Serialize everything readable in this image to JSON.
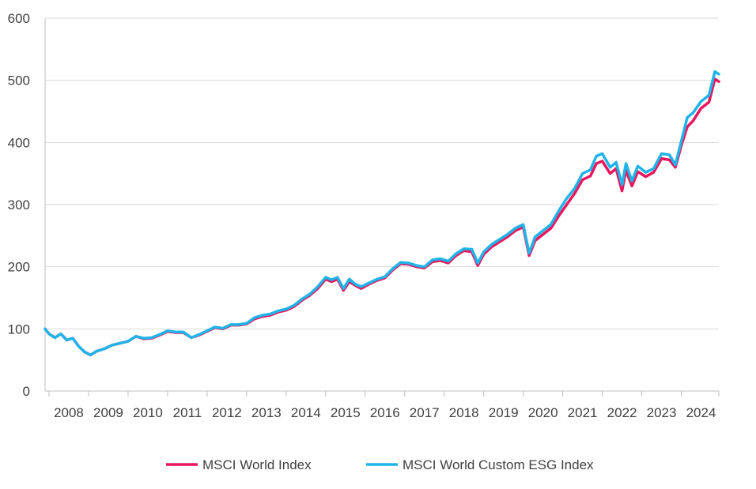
{
  "chart_data": {
    "type": "line",
    "title": "",
    "xlabel": "",
    "ylabel": "",
    "ylim": [
      0,
      600
    ],
    "xlim": [
      2007.9,
      2024.95
    ],
    "yticks": [
      "0",
      "100",
      "200",
      "300",
      "400",
      "500",
      "600"
    ],
    "xticks": [
      "2008",
      "2009",
      "2010",
      "2011",
      "2012",
      "2013",
      "2014",
      "2015",
      "2016",
      "2017",
      "2018",
      "2019",
      "2020",
      "2021",
      "2022",
      "2023",
      "2024"
    ],
    "grid": "horizontal",
    "legend": "bottom-center",
    "series": [
      {
        "name": "MSCI World Index",
        "color": "#E8175D",
        "points": [
          [
            2007.9,
            100
          ],
          [
            2008.0,
            92
          ],
          [
            2008.15,
            86
          ],
          [
            2008.3,
            92
          ],
          [
            2008.45,
            82
          ],
          [
            2008.6,
            85
          ],
          [
            2008.75,
            72
          ],
          [
            2008.9,
            63
          ],
          [
            2009.05,
            58
          ],
          [
            2009.2,
            64
          ],
          [
            2009.4,
            68
          ],
          [
            2009.6,
            74
          ],
          [
            2009.8,
            77
          ],
          [
            2010.0,
            80
          ],
          [
            2010.2,
            88
          ],
          [
            2010.4,
            84
          ],
          [
            2010.6,
            85
          ],
          [
            2010.8,
            90
          ],
          [
            2011.0,
            96
          ],
          [
            2011.2,
            94
          ],
          [
            2011.4,
            94
          ],
          [
            2011.6,
            86
          ],
          [
            2011.8,
            90
          ],
          [
            2012.0,
            96
          ],
          [
            2012.2,
            102
          ],
          [
            2012.4,
            100
          ],
          [
            2012.6,
            106
          ],
          [
            2012.8,
            106
          ],
          [
            2013.0,
            108
          ],
          [
            2013.2,
            116
          ],
          [
            2013.4,
            120
          ],
          [
            2013.6,
            122
          ],
          [
            2013.8,
            127
          ],
          [
            2014.0,
            130
          ],
          [
            2014.2,
            136
          ],
          [
            2014.4,
            146
          ],
          [
            2014.6,
            154
          ],
          [
            2014.8,
            165
          ],
          [
            2015.0,
            180
          ],
          [
            2015.15,
            176
          ],
          [
            2015.3,
            180
          ],
          [
            2015.45,
            162
          ],
          [
            2015.6,
            176
          ],
          [
            2015.75,
            170
          ],
          [
            2015.9,
            165
          ],
          [
            2016.1,
            172
          ],
          [
            2016.3,
            178
          ],
          [
            2016.5,
            182
          ],
          [
            2016.7,
            195
          ],
          [
            2016.9,
            205
          ],
          [
            2017.1,
            204
          ],
          [
            2017.3,
            200
          ],
          [
            2017.5,
            198
          ],
          [
            2017.7,
            208
          ],
          [
            2017.9,
            210
          ],
          [
            2018.1,
            206
          ],
          [
            2018.3,
            218
          ],
          [
            2018.5,
            226
          ],
          [
            2018.7,
            224
          ],
          [
            2018.85,
            202
          ],
          [
            2019.0,
            220
          ],
          [
            2019.2,
            232
          ],
          [
            2019.4,
            240
          ],
          [
            2019.6,
            248
          ],
          [
            2019.8,
            258
          ],
          [
            2020.0,
            264
          ],
          [
            2020.15,
            218
          ],
          [
            2020.3,
            242
          ],
          [
            2020.5,
            252
          ],
          [
            2020.7,
            262
          ],
          [
            2020.9,
            282
          ],
          [
            2021.1,
            300
          ],
          [
            2021.3,
            318
          ],
          [
            2021.5,
            340
          ],
          [
            2021.7,
            346
          ],
          [
            2021.85,
            366
          ],
          [
            2022.0,
            370
          ],
          [
            2022.2,
            350
          ],
          [
            2022.35,
            358
          ],
          [
            2022.5,
            322
          ],
          [
            2022.6,
            355
          ],
          [
            2022.75,
            330
          ],
          [
            2022.9,
            353
          ],
          [
            2023.1,
            345
          ],
          [
            2023.3,
            352
          ],
          [
            2023.5,
            374
          ],
          [
            2023.7,
            372
          ],
          [
            2023.85,
            360
          ],
          [
            2024.0,
            395
          ],
          [
            2024.15,
            425
          ],
          [
            2024.3,
            435
          ],
          [
            2024.5,
            455
          ],
          [
            2024.7,
            465
          ],
          [
            2024.85,
            502
          ],
          [
            2024.95,
            498
          ]
        ]
      },
      {
        "name": "MSCI World Custom ESG Index",
        "color": "#20B4E8",
        "points": [
          [
            2007.9,
            100
          ],
          [
            2008.0,
            92
          ],
          [
            2008.15,
            86
          ],
          [
            2008.3,
            92
          ],
          [
            2008.45,
            82
          ],
          [
            2008.6,
            85
          ],
          [
            2008.75,
            72
          ],
          [
            2008.9,
            63
          ],
          [
            2009.05,
            58
          ],
          [
            2009.2,
            64
          ],
          [
            2009.4,
            68
          ],
          [
            2009.6,
            74
          ],
          [
            2009.8,
            77
          ],
          [
            2010.0,
            80
          ],
          [
            2010.2,
            88
          ],
          [
            2010.4,
            85
          ],
          [
            2010.6,
            86
          ],
          [
            2010.8,
            91
          ],
          [
            2011.0,
            97
          ],
          [
            2011.2,
            95
          ],
          [
            2011.4,
            95
          ],
          [
            2011.6,
            86
          ],
          [
            2011.8,
            91
          ],
          [
            2012.0,
            97
          ],
          [
            2012.2,
            103
          ],
          [
            2012.4,
            101
          ],
          [
            2012.6,
            107
          ],
          [
            2012.8,
            107
          ],
          [
            2013.0,
            109
          ],
          [
            2013.2,
            118
          ],
          [
            2013.4,
            122
          ],
          [
            2013.6,
            124
          ],
          [
            2013.8,
            129
          ],
          [
            2014.0,
            132
          ],
          [
            2014.2,
            138
          ],
          [
            2014.4,
            148
          ],
          [
            2014.6,
            156
          ],
          [
            2014.8,
            168
          ],
          [
            2015.0,
            183
          ],
          [
            2015.15,
            179
          ],
          [
            2015.3,
            183
          ],
          [
            2015.45,
            165
          ],
          [
            2015.6,
            180
          ],
          [
            2015.75,
            172
          ],
          [
            2015.9,
            168
          ],
          [
            2016.1,
            174
          ],
          [
            2016.3,
            180
          ],
          [
            2016.5,
            184
          ],
          [
            2016.7,
            197
          ],
          [
            2016.9,
            207
          ],
          [
            2017.1,
            206
          ],
          [
            2017.3,
            202
          ],
          [
            2017.5,
            200
          ],
          [
            2017.7,
            211
          ],
          [
            2017.9,
            213
          ],
          [
            2018.1,
            209
          ],
          [
            2018.3,
            221
          ],
          [
            2018.5,
            229
          ],
          [
            2018.7,
            228
          ],
          [
            2018.85,
            206
          ],
          [
            2019.0,
            224
          ],
          [
            2019.2,
            236
          ],
          [
            2019.4,
            244
          ],
          [
            2019.6,
            252
          ],
          [
            2019.8,
            262
          ],
          [
            2020.0,
            268
          ],
          [
            2020.15,
            222
          ],
          [
            2020.3,
            248
          ],
          [
            2020.5,
            258
          ],
          [
            2020.7,
            268
          ],
          [
            2020.9,
            290
          ],
          [
            2021.1,
            310
          ],
          [
            2021.3,
            326
          ],
          [
            2021.5,
            350
          ],
          [
            2021.7,
            356
          ],
          [
            2021.85,
            378
          ],
          [
            2022.0,
            382
          ],
          [
            2022.2,
            360
          ],
          [
            2022.35,
            368
          ],
          [
            2022.5,
            332
          ],
          [
            2022.6,
            366
          ],
          [
            2022.75,
            338
          ],
          [
            2022.9,
            362
          ],
          [
            2023.1,
            352
          ],
          [
            2023.3,
            358
          ],
          [
            2023.5,
            382
          ],
          [
            2023.7,
            380
          ],
          [
            2023.85,
            364
          ],
          [
            2024.0,
            402
          ],
          [
            2024.15,
            440
          ],
          [
            2024.3,
            448
          ],
          [
            2024.5,
            466
          ],
          [
            2024.7,
            476
          ],
          [
            2024.85,
            514
          ],
          [
            2024.95,
            510
          ]
        ]
      }
    ]
  }
}
